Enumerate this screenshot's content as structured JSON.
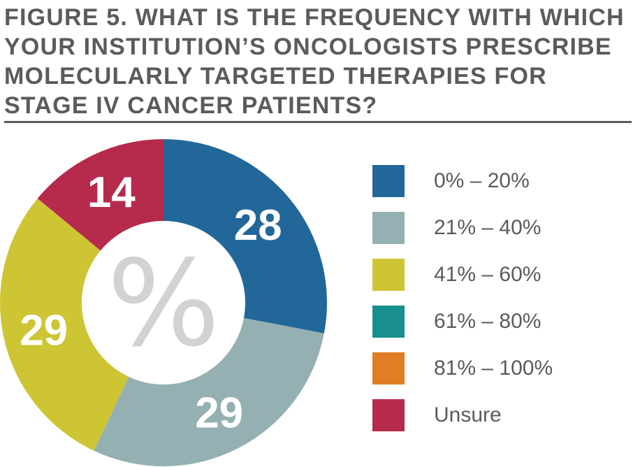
{
  "title": "FIGURE 5. WHAT IS THE FREQUENCY WITH WHICH YOUR INSTITUTION’S ONCOLOGISTS PRESCRIBE MOLECULARLY TARGETED THERAPIES FOR STAGE IV CANCER PATIENTS?",
  "center_symbol": "%",
  "chart_data": {
    "type": "pie",
    "title": "FIGURE 5. WHAT IS THE FREQUENCY WITH WHICH YOUR INSTITUTION’S ONCOLOGISTS PRESCRIBE MOLECULARLY TARGETED THERAPIES FOR STAGE IV CANCER PATIENTS?",
    "unit": "%",
    "donut": true,
    "legend_position": "right",
    "slices": [
      {
        "label": "0% – 20%",
        "value": 28,
        "color": "#22679a"
      },
      {
        "label": "21% – 40%",
        "value": 29,
        "color": "#95b0b3"
      },
      {
        "label": "41% – 60%",
        "value": 29,
        "color": "#cdc534"
      },
      {
        "label": "61% – 80%",
        "value": 0,
        "color": "#178f8c"
      },
      {
        "label": "81% – 100%",
        "value": 0,
        "color": "#e07e25"
      },
      {
        "label": "Unsure",
        "value": 14,
        "color": "#b62a4c"
      }
    ]
  }
}
